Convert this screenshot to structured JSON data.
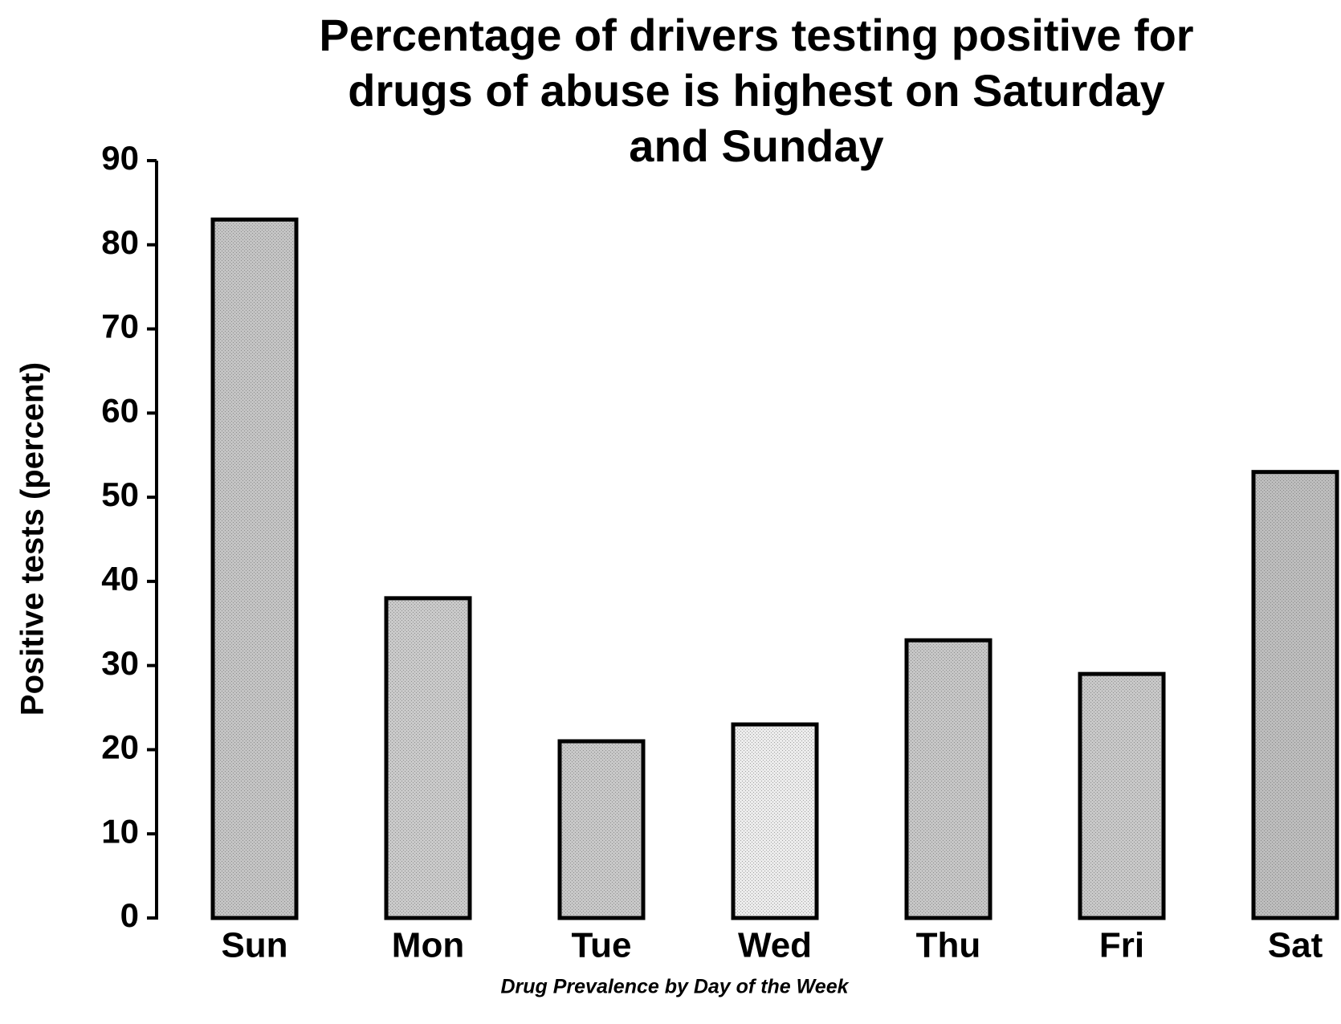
{
  "chart_data": {
    "type": "bar",
    "title": [
      "Percentage of drivers testing positive for",
      "drugs of abuse is highest on Saturday",
      "and Sunday"
    ],
    "ylabel": "Positive tests (percent)",
    "caption": "Drug Prevalence by Day of the Week",
    "categories": [
      "Sun",
      "Mon",
      "Tue",
      "Wed",
      "Thu",
      "Fri",
      "Sat"
    ],
    "values": [
      83,
      38,
      21,
      23,
      33,
      29,
      53
    ],
    "colors": [
      "#c4c4c4",
      "#cacaca",
      "#c8c8c8",
      "#ececec",
      "#c6c6c6",
      "#c8c8c8",
      "#bdbdbd"
    ],
    "ylim": [
      0,
      90
    ],
    "yticks": [
      0,
      10,
      20,
      30,
      40,
      50,
      60,
      70,
      80,
      90
    ],
    "grid": false
  }
}
